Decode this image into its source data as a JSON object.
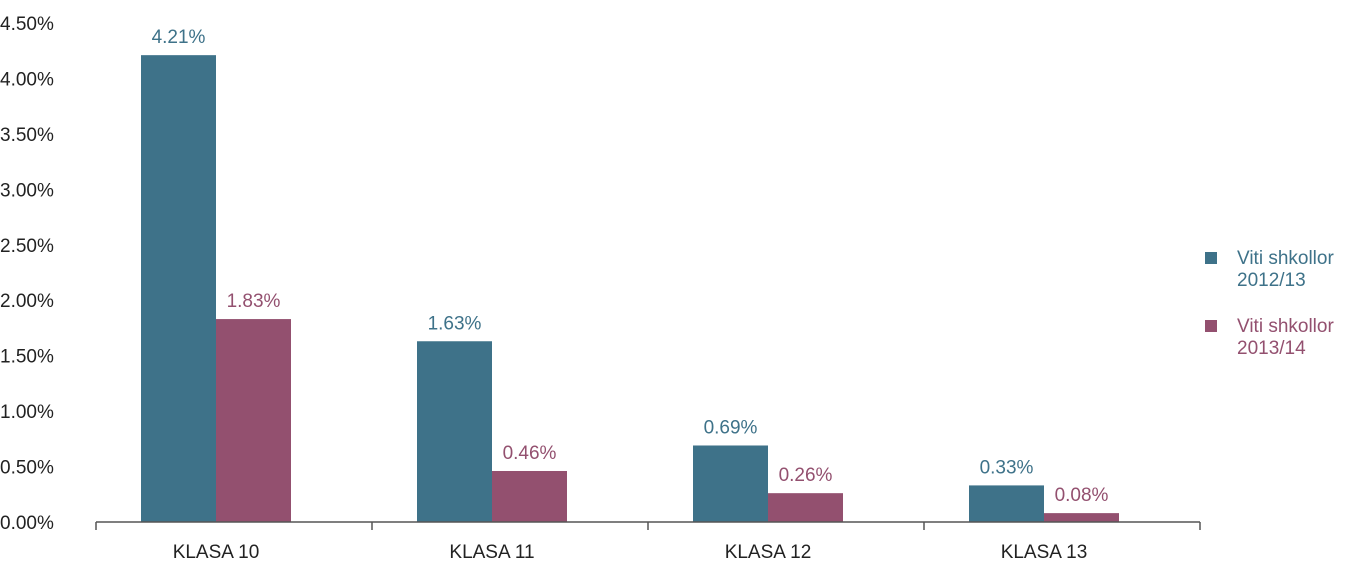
{
  "chart_data": {
    "type": "bar",
    "title": "",
    "xlabel": "",
    "ylabel": "",
    "categories": [
      "KLASA 10",
      "KLASA 11",
      "KLASA 12",
      "KLASA 13"
    ],
    "series": [
      {
        "name": "Viti shkollor 2012/13",
        "name_lines": [
          "Viti shkollor",
          "2012/13"
        ],
        "color": "#3e7289",
        "values": [
          4.21,
          1.63,
          0.69,
          0.33
        ],
        "labels": [
          "4.21%",
          "1.63%",
          "0.69%",
          "0.33%"
        ]
      },
      {
        "name": "Viti shkollor 2013/14",
        "name_lines": [
          "Viti shkollor",
          "2013/14"
        ],
        "color": "#93506f",
        "values": [
          1.83,
          0.46,
          0.26,
          0.08
        ],
        "labels": [
          "1.83%",
          "0.46%",
          "0.26%",
          "0.08%"
        ]
      }
    ],
    "yticks": [
      "0.00%",
      "0.50%",
      "1.00%",
      "1.50%",
      "2.00%",
      "2.50%",
      "3.00%",
      "3.50%",
      "4.00%",
      "4.50%"
    ],
    "ylim": [
      0,
      4.5
    ],
    "grid": false,
    "legend_position": "right"
  }
}
